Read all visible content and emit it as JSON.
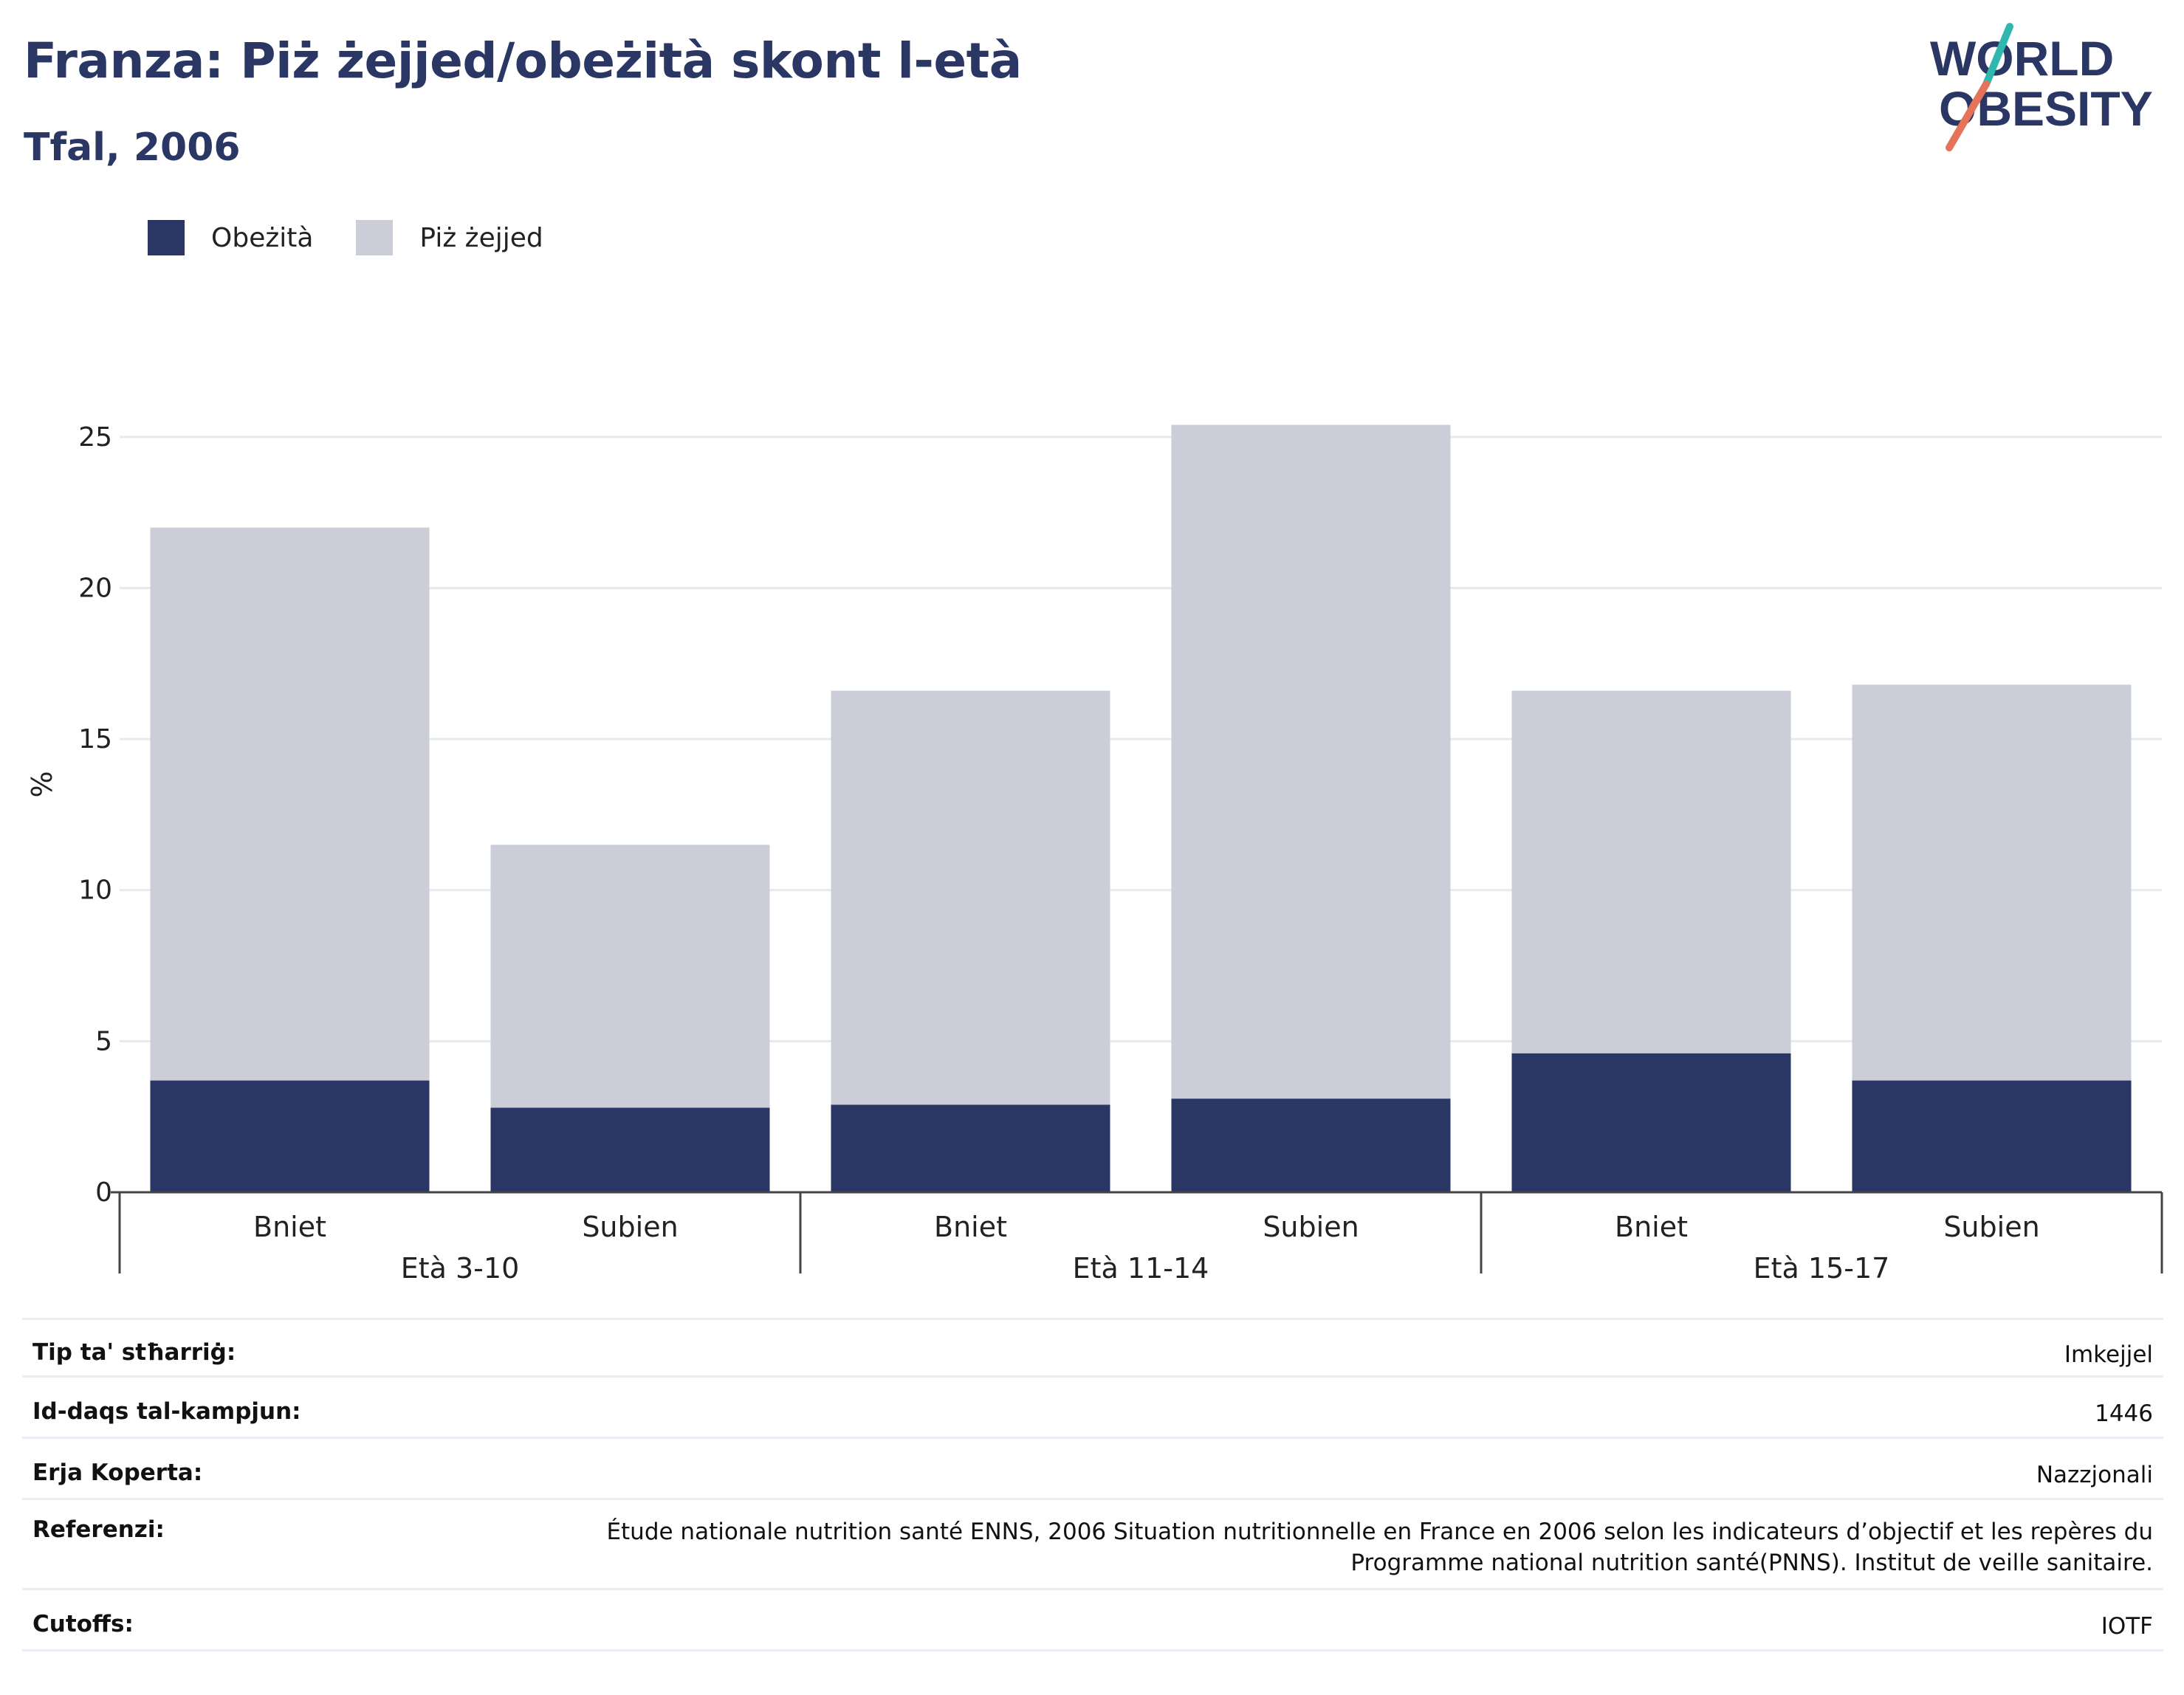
{
  "header": {
    "title": "Franza: Piż żejjed/obeżità skont l-età",
    "subtitle": "Tfal, 2006"
  },
  "logo": {
    "line1": "WORLD",
    "line2": "OBESITY"
  },
  "colors": {
    "obesity": "#2a3664",
    "overweight": "#cbcdd9",
    "slash_teal": "#2fb7b0",
    "slash_coral": "#e4735a",
    "axis": "#444444",
    "grid": "#e8e9ee"
  },
  "chart_data": {
    "type": "bar",
    "stacked": true,
    "groups": [
      {
        "label": "Età 3-10",
        "categories": [
          "Bniet",
          "Subien"
        ]
      },
      {
        "label": "Età 11-14",
        "categories": [
          "Bniet",
          "Subien"
        ]
      },
      {
        "label": "Età 15-17",
        "categories": [
          "Bniet",
          "Subien"
        ]
      }
    ],
    "series": [
      {
        "name": "Obeżità",
        "color": "#2a3664",
        "values": [
          3.7,
          2.8,
          2.9,
          3.1,
          4.6,
          3.7
        ]
      },
      {
        "name": "Piż żejjed",
        "color": "#cbcdd9",
        "values": [
          18.3,
          8.7,
          13.7,
          22.3,
          12.0,
          13.1
        ]
      }
    ],
    "ylabel": "%",
    "ylim": [
      0,
      27
    ],
    "yticks": [
      0,
      5,
      10,
      15,
      20,
      25
    ],
    "grid": true,
    "legend": "top-left"
  },
  "info": [
    {
      "key": "Tip ta' stħarriġ:",
      "value": "Imkejjel"
    },
    {
      "key": "Id-daqs tal-kampjun:",
      "value": "1446"
    },
    {
      "key": "Erja Koperta:",
      "value": "Nazzjonali"
    },
    {
      "key": "Referenzi:",
      "value": "Étude nationale nutrition santé ENNS, 2006 Situation nutritionnelle en France en 2006 selon les indicateurs d’objectif et les repères du Programme national nutrition santé(PNNS). Institut de veille sanitaire."
    },
    {
      "key": "Cutoffs:",
      "value": "IOTF"
    }
  ]
}
